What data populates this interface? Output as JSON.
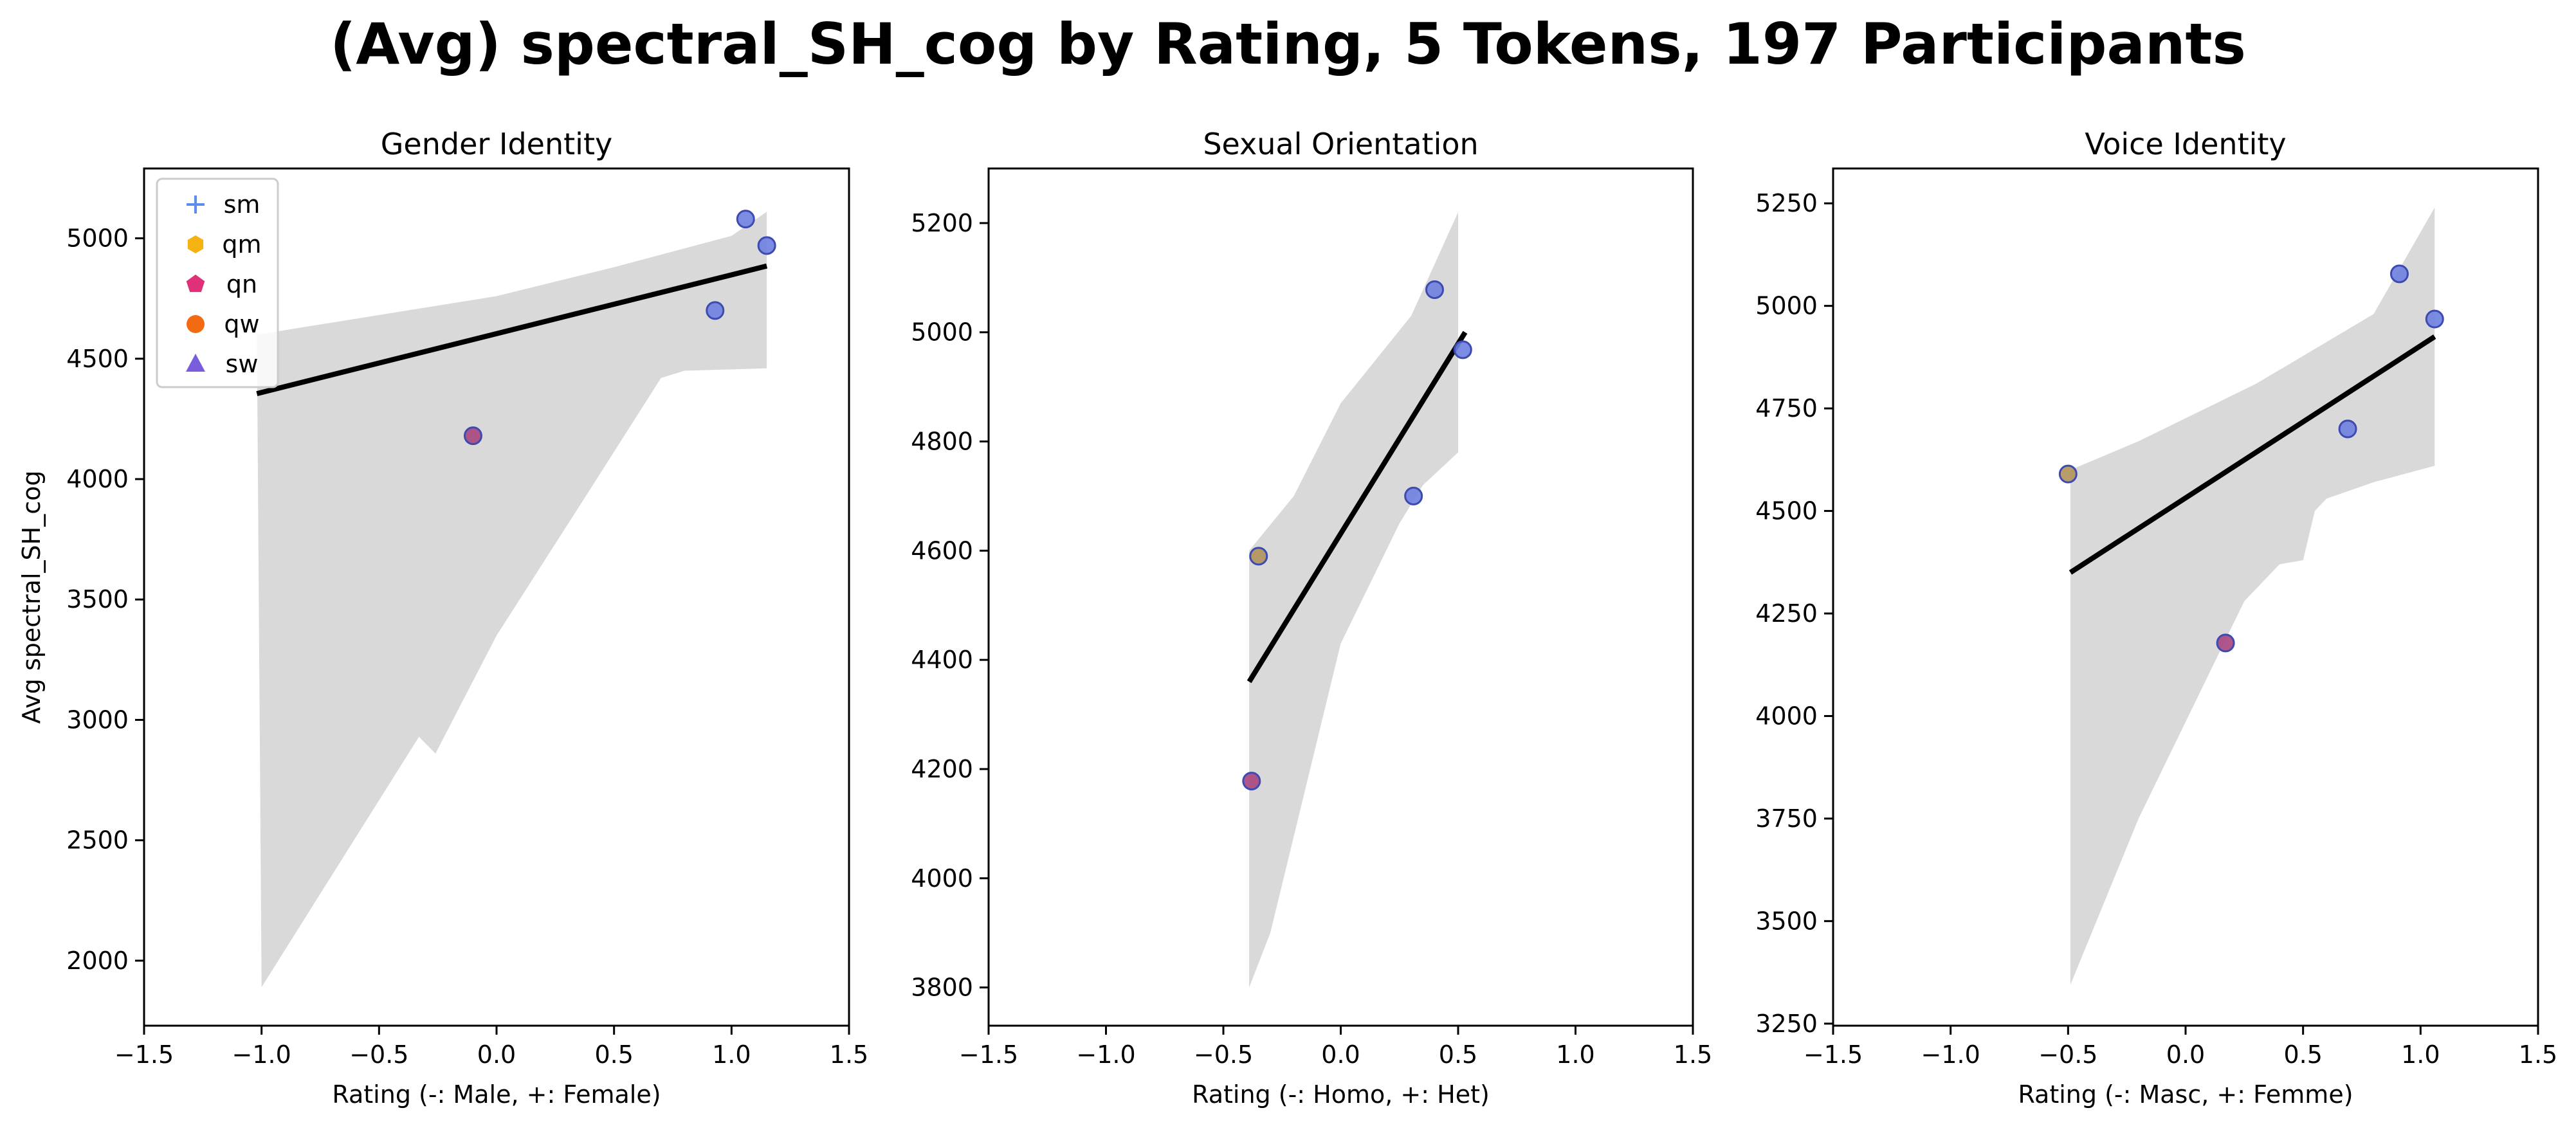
{
  "title": "(Avg) spectral_SH_cog by Rating, 5 Tokens, 197 Participants",
  "legend": {
    "placement": "upper-left",
    "entries": [
      {
        "label": "sm",
        "marker": "plus",
        "color": "#5b8def"
      },
      {
        "label": "qm",
        "marker": "hexagon",
        "color": "#f5b311"
      },
      {
        "label": "qn",
        "marker": "pentagon",
        "color": "#e0307a"
      },
      {
        "label": "qw",
        "marker": "circle",
        "color": "#f26a12"
      },
      {
        "label": "sw",
        "marker": "triangle",
        "color": "#7a5cdc"
      }
    ]
  },
  "colors": {
    "point_fill": "#6f7fe0",
    "point_edge": "#3d4ab0",
    "ci_band": "#d9d9d9",
    "fit_line": "#000000"
  },
  "chart_data": [
    {
      "type": "scatter",
      "title": "Gender Identity",
      "xlabel": "Rating (-: Male, +: Female)",
      "ylabel": "Avg spectral_SH_cog",
      "xlim": [
        -1.5,
        1.5
      ],
      "ylim": [
        1730,
        5290
      ],
      "xticks": [
        -1.5,
        -1.0,
        -0.5,
        0.0,
        0.5,
        1.0,
        1.5
      ],
      "xtick_labels": [
        "−1.5",
        "−1.0",
        "−0.5",
        "0.0",
        "0.5",
        "1.0",
        "1.5"
      ],
      "yticks": [
        2000,
        2500,
        3000,
        3500,
        4000,
        4500,
        5000
      ],
      "ytick_labels": [
        "2000",
        "2500",
        "3000",
        "3500",
        "4000",
        "4500",
        "5000"
      ],
      "points": [
        {
          "x": -0.1,
          "y": 4180,
          "fill": "#a6457e"
        },
        {
          "x": 0.93,
          "y": 4700,
          "fill": "#6f7fe0"
        },
        {
          "x": 1.06,
          "y": 5080,
          "fill": "#6f7fe0"
        },
        {
          "x": 1.15,
          "y": 4970,
          "fill": "#6f7fe0"
        }
      ],
      "fit": [
        {
          "x": -1.02,
          "y": 4355
        },
        {
          "x": 1.15,
          "y": 4885
        }
      ],
      "ci_upper": [
        {
          "x": -1.02,
          "y": 4600
        },
        {
          "x": 0.0,
          "y": 4760
        },
        {
          "x": 0.5,
          "y": 4880
        },
        {
          "x": 1.0,
          "y": 5010
        },
        {
          "x": 1.15,
          "y": 5110
        }
      ],
      "ci_lower": [
        {
          "x": 1.15,
          "y": 4460
        },
        {
          "x": 0.8,
          "y": 4450
        },
        {
          "x": 0.7,
          "y": 4420
        },
        {
          "x": 0.4,
          "y": 3960
        },
        {
          "x": 0.0,
          "y": 3350
        },
        {
          "x": -0.26,
          "y": 2860
        },
        {
          "x": -0.33,
          "y": 2930
        },
        {
          "x": -1.0,
          "y": 1890
        }
      ]
    },
    {
      "type": "scatter",
      "title": "Sexual Orientation",
      "xlabel": "Rating (-: Homo, +: Het)",
      "ylabel": "",
      "xlim": [
        -1.5,
        1.5
      ],
      "ylim": [
        3730,
        5300
      ],
      "xticks": [
        -1.5,
        -1.0,
        -0.5,
        0.0,
        0.5,
        1.0,
        1.5
      ],
      "xtick_labels": [
        "−1.5",
        "−1.0",
        "−0.5",
        "0.0",
        "0.5",
        "1.0",
        "1.5"
      ],
      "yticks": [
        3800,
        4000,
        4200,
        4400,
        4600,
        4800,
        5000,
        5200
      ],
      "ytick_labels": [
        "3800",
        "4000",
        "4200",
        "4400",
        "4600",
        "4800",
        "5000",
        "5200"
      ],
      "points": [
        {
          "x": -0.38,
          "y": 4178,
          "fill": "#a6457e"
        },
        {
          "x": -0.35,
          "y": 4590,
          "fill": "#b0915a"
        },
        {
          "x": 0.31,
          "y": 4700,
          "fill": "#6f7fe0"
        },
        {
          "x": 0.4,
          "y": 5078,
          "fill": "#6f7fe0"
        },
        {
          "x": 0.52,
          "y": 4968,
          "fill": "#6f7fe0"
        }
      ],
      "fit": [
        {
          "x": -0.39,
          "y": 4360
        },
        {
          "x": 0.53,
          "y": 5000
        }
      ],
      "ci_upper": [
        {
          "x": -0.39,
          "y": 4600
        },
        {
          "x": -0.2,
          "y": 4700
        },
        {
          "x": 0.0,
          "y": 4870
        },
        {
          "x": 0.3,
          "y": 5030
        },
        {
          "x": 0.5,
          "y": 5220
        }
      ],
      "ci_lower": [
        {
          "x": 0.5,
          "y": 4780
        },
        {
          "x": 0.35,
          "y": 4720
        },
        {
          "x": 0.25,
          "y": 4650
        },
        {
          "x": 0.0,
          "y": 4430
        },
        {
          "x": -0.3,
          "y": 3900
        },
        {
          "x": -0.39,
          "y": 3800
        }
      ]
    },
    {
      "type": "scatter",
      "title": "Voice Identity",
      "xlabel": "Rating (-: Masc, +: Femme)",
      "ylabel": "",
      "xlim": [
        -1.5,
        1.5
      ],
      "ylim": [
        3245,
        5335
      ],
      "xticks": [
        -1.5,
        -1.0,
        -0.5,
        0.0,
        0.5,
        1.0,
        1.5
      ],
      "xtick_labels": [
        "−1.5",
        "−1.0",
        "−0.5",
        "0.0",
        "0.5",
        "1.0",
        "1.5"
      ],
      "yticks": [
        3250,
        3500,
        3750,
        4000,
        4250,
        4500,
        4750,
        5000,
        5250
      ],
      "ytick_labels": [
        "3250",
        "3500",
        "3750",
        "4000",
        "4250",
        "4500",
        "4750",
        "5000",
        "5250"
      ],
      "points": [
        {
          "x": -0.5,
          "y": 4590,
          "fill": "#b0915a"
        },
        {
          "x": 0.17,
          "y": 4178,
          "fill": "#a6457e"
        },
        {
          "x": 0.69,
          "y": 4700,
          "fill": "#6f7fe0"
        },
        {
          "x": 0.91,
          "y": 5078,
          "fill": "#6f7fe0"
        },
        {
          "x": 1.06,
          "y": 4968,
          "fill": "#6f7fe0"
        }
      ],
      "fit": [
        {
          "x": -0.49,
          "y": 4350
        },
        {
          "x": 1.06,
          "y": 4925
        }
      ],
      "ci_upper": [
        {
          "x": -0.49,
          "y": 4600
        },
        {
          "x": -0.2,
          "y": 4670
        },
        {
          "x": 0.3,
          "y": 4810
        },
        {
          "x": 0.8,
          "y": 4980
        },
        {
          "x": 1.06,
          "y": 5240
        }
      ],
      "ci_lower": [
        {
          "x": 1.06,
          "y": 4610
        },
        {
          "x": 0.8,
          "y": 4570
        },
        {
          "x": 0.6,
          "y": 4530
        },
        {
          "x": 0.55,
          "y": 4500
        },
        {
          "x": 0.5,
          "y": 4380
        },
        {
          "x": 0.4,
          "y": 4370
        },
        {
          "x": 0.25,
          "y": 4280
        },
        {
          "x": -0.2,
          "y": 3750
        },
        {
          "x": -0.49,
          "y": 3345
        }
      ]
    }
  ]
}
